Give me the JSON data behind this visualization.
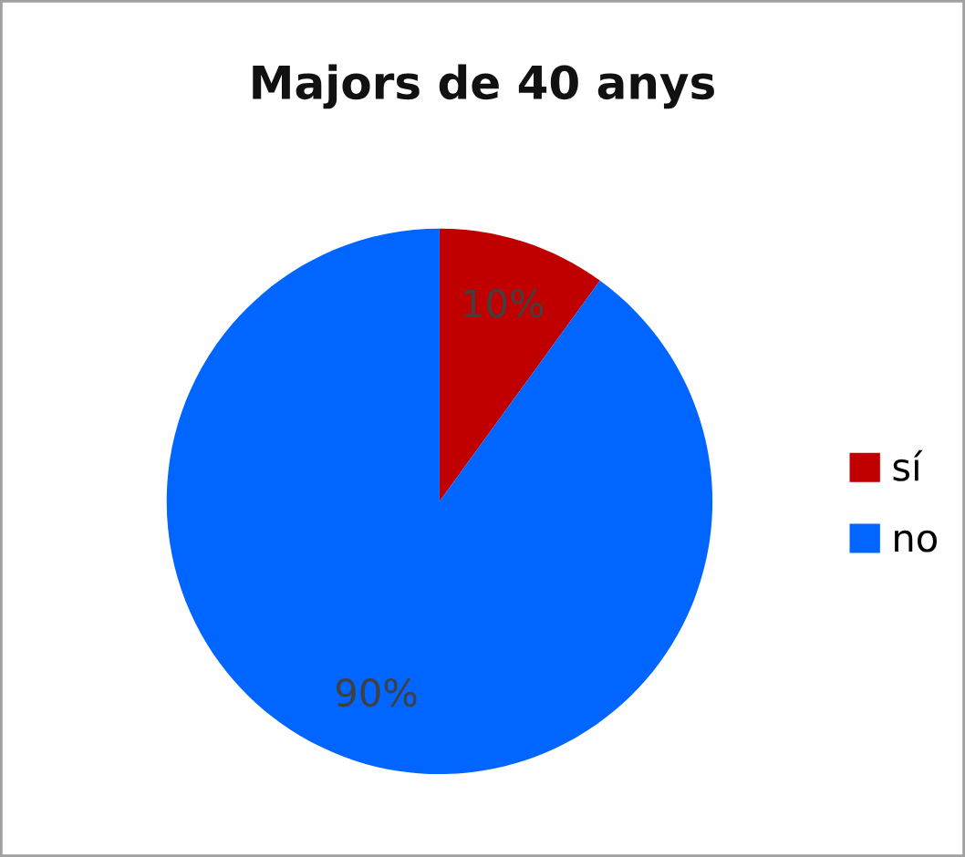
{
  "chart_data": {
    "type": "pie",
    "title": "Majors de 40 anys",
    "categories": [
      "sí",
      "no"
    ],
    "values": [
      10,
      90
    ],
    "colors": [
      "#c00000",
      "#0066ff"
    ],
    "value_labels": [
      "10%",
      "90%"
    ],
    "legend": "right"
  }
}
